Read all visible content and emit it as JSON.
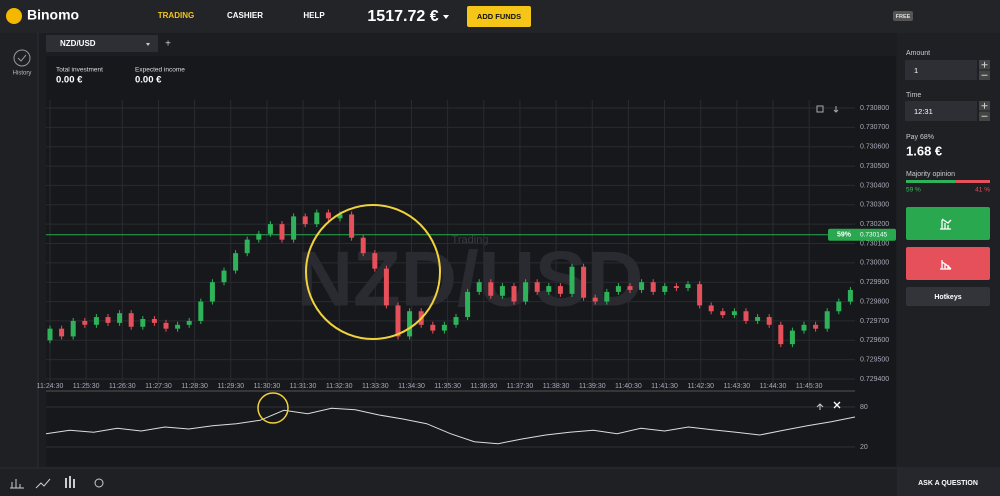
{
  "header": {
    "brand": "Binomo",
    "nav": [
      "TRADING",
      "CASHIER",
      "HELP"
    ],
    "balance": "1517.72 €",
    "add_funds": "ADD FUNDS",
    "badge": "FREE"
  },
  "sidebar": {
    "history": "History"
  },
  "tab": {
    "pair": "NZD/USD",
    "add": "+"
  },
  "stats": {
    "investment_label": "Total investment",
    "investment": "0.00 €",
    "income_label": "Expected income",
    "income": "0.00 €"
  },
  "chart": {
    "watermark": "NZD/USD",
    "subtitle": "Trading",
    "ylim": [
      0.7294,
      0.7308
    ],
    "yticks": [
      {
        "value": 0.7308,
        "label": "0.730800"
      },
      {
        "value": 0.7307,
        "label": "0.730700"
      },
      {
        "value": 0.7306,
        "label": "0.730600"
      },
      {
        "value": 0.7305,
        "label": "0.730500"
      },
      {
        "value": 0.7304,
        "label": "0.730400"
      },
      {
        "value": 0.7303,
        "label": "0.730300"
      },
      {
        "value": 0.7302,
        "label": "0.730200"
      },
      {
        "value": 0.7301,
        "label": "0.730100"
      },
      {
        "value": 0.73,
        "label": "0.730000"
      },
      {
        "value": 0.7299,
        "label": "0.729900"
      },
      {
        "value": 0.7298,
        "label": "0.729800"
      },
      {
        "value": 0.7297,
        "label": "0.729700"
      },
      {
        "value": 0.7296,
        "label": "0.729600"
      },
      {
        "value": 0.7295,
        "label": "0.729500"
      },
      {
        "value": 0.7294,
        "label": "0.729400"
      }
    ],
    "xticks": [
      "11:24:30",
      "11:25:30",
      "11:26:30",
      "11:27:30",
      "11:28:30",
      "11:29:30",
      "11:30:30",
      "11:31:30",
      "11:32:30",
      "11:33:30",
      "11:34:30",
      "11:35:30",
      "11:36:30",
      "11:37:30",
      "11:38:30",
      "11:39:30",
      "11:40:30",
      "11:41:30",
      "11:42:30",
      "11:43:30",
      "11:44:30",
      "11:45:30"
    ],
    "current": {
      "value": 0.730145,
      "label": "0.730145",
      "percent": "59%"
    },
    "open": 0.7296,
    "candles": [
      0.72966,
      0.72962,
      0.7297,
      0.72968,
      0.72972,
      0.72969,
      0.72974,
      0.72967,
      0.72971,
      0.72969,
      0.72966,
      0.72968,
      0.7297,
      0.7298,
      0.7299,
      0.72996,
      0.73005,
      0.73012,
      0.73015,
      0.7302,
      0.73012,
      0.73024,
      0.7302,
      0.73026,
      0.73023,
      0.73025,
      0.73013,
      0.73005,
      0.72997,
      0.72978,
      0.72962,
      0.72975,
      0.72968,
      0.72965,
      0.72968,
      0.72972,
      0.72985,
      0.7299,
      0.72983,
      0.72988,
      0.7298,
      0.7299,
      0.72985,
      0.72988,
      0.72984,
      0.72998,
      0.72982,
      0.7298,
      0.72985,
      0.72988,
      0.72986,
      0.7299,
      0.72985,
      0.72988,
      0.72987,
      0.72989,
      0.72978,
      0.72975,
      0.72973,
      0.72975,
      0.7297,
      0.72972,
      0.72968,
      0.72958,
      0.72965,
      0.72968,
      0.72966,
      0.72975,
      0.7298,
      0.72986
    ],
    "oscillator": {
      "yticks": [
        80,
        20
      ],
      "values": [
        40,
        45,
        42,
        48,
        44,
        50,
        47,
        52,
        55,
        60,
        75,
        70,
        78,
        76,
        68,
        62,
        55,
        40,
        28,
        25,
        32,
        38,
        42,
        45,
        40,
        48,
        44,
        50,
        46,
        42,
        38,
        45,
        52,
        58,
        65
      ]
    }
  },
  "panel": {
    "amount_label": "Amount",
    "amount": "1",
    "time_label": "Time",
    "time": "12:31",
    "pay_label": "Pay 68%",
    "pay": "1.68 €",
    "majority_label": "Majority opinion",
    "up": {
      "value": 59,
      "label": "59 %"
    },
    "down": {
      "value": 41,
      "label": "41 %"
    },
    "hotkeys": "Hotkeys"
  },
  "footer": {
    "ask": "ASK A QUESTION"
  }
}
